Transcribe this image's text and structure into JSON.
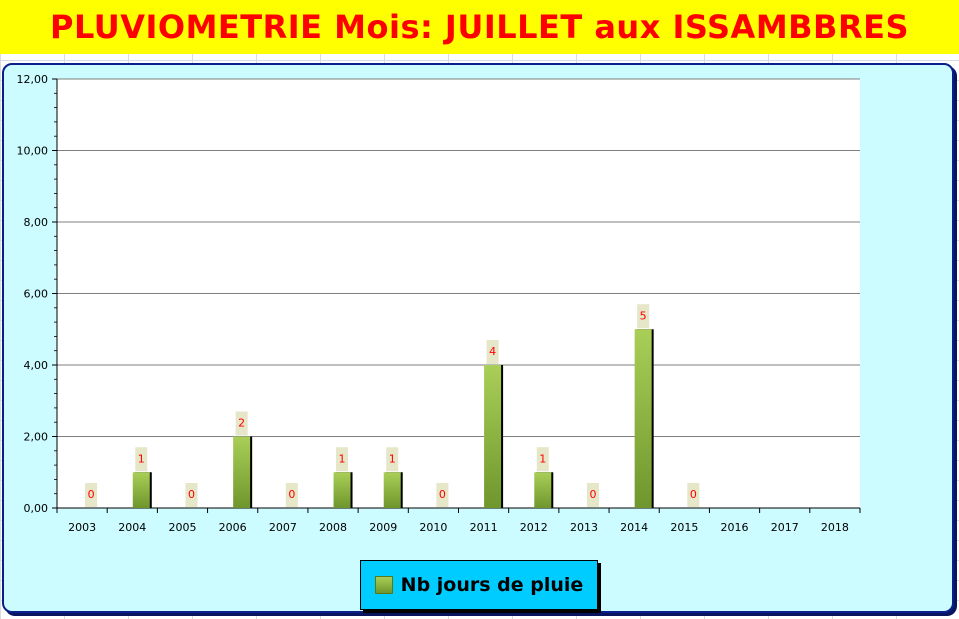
{
  "header": {
    "title": "PLUVIOMETRIE Mois: JUILLET aux ISSAMBBRES"
  },
  "colors": {
    "banner_bg": "#ffff00",
    "title_text": "#ff0000",
    "chart_bg": "#ccfcff",
    "plot_bg": "#ffffff",
    "bar_light": "#a9cf58",
    "bar_dark": "#6f962c",
    "label_bg": "#e6e6c8",
    "label_text": "#ff0000",
    "legend_bg": "#00ccff"
  },
  "chart_data": {
    "type": "bar",
    "title": "",
    "xlabel": "",
    "ylabel": "",
    "categories": [
      "2003",
      "2004",
      "2005",
      "2006",
      "2007",
      "2008",
      "2009",
      "2010",
      "2011",
      "2012",
      "2013",
      "2014",
      "2015",
      "2016",
      "2017",
      "2018"
    ],
    "series": [
      {
        "name": "Nb jours de pluie",
        "values": [
          0,
          1,
          0,
          2,
          0,
          1,
          1,
          0,
          4,
          1,
          0,
          5,
          0,
          null,
          null,
          null
        ],
        "labels": [
          "0",
          "1",
          "0",
          "2",
          "0",
          "1",
          "1",
          "0",
          "4",
          "1",
          "0",
          "5",
          "0",
          "",
          "",
          ""
        ]
      }
    ],
    "ylim": [
      0,
      12
    ],
    "yticks": [
      "0,00",
      "2,00",
      "4,00",
      "6,00",
      "8,00",
      "10,00",
      "12,00"
    ],
    "grid": true,
    "legend": "bottom"
  }
}
